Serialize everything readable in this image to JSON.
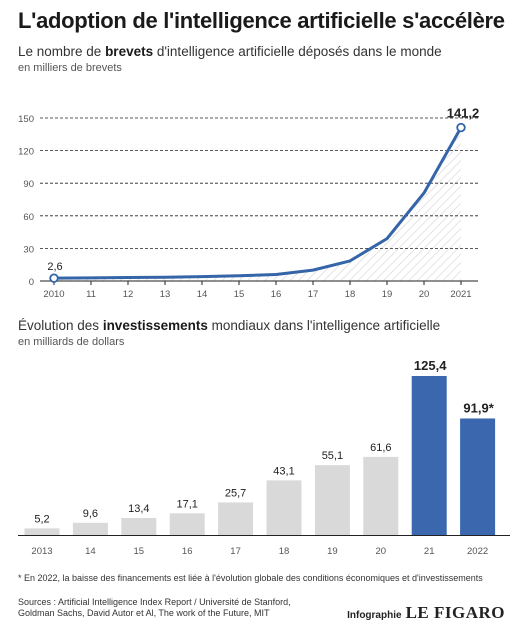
{
  "title": "L'adoption de l'intelligence artificielle s'accélère",
  "patents": {
    "subtitle_pre": "Le nombre de ",
    "subtitle_bold": "brevets",
    "subtitle_post": " d'intelligence artificielle déposés dans le monde",
    "unit": "en milliers de brevets"
  },
  "investments": {
    "subtitle_pre": "Évolution des ",
    "subtitle_bold": "investissements",
    "subtitle_post": " mondiaux dans l'intelligence artificielle",
    "unit": "en milliards de dollars"
  },
  "footnote": "* En 2022, la baisse des financements est liée à l'évolution globale des conditions économiques et d'investissements",
  "sources": "Sources : Artificial Intelligence Index Report / Université de Stanford, Goldman Sachs, David Autor et Al, The work of the Future, MIT",
  "credit": {
    "label": "Infographie",
    "logo": "LE FIGARO"
  },
  "colors": {
    "line": "#3565a8",
    "bar_highlight": "#3a67ae",
    "bar_gray": "#d9d9d9",
    "grid": "#222222"
  },
  "chart_data": [
    {
      "type": "line",
      "x": [
        "2010",
        "11",
        "12",
        "13",
        "14",
        "15",
        "16",
        "17",
        "18",
        "19",
        "20",
        "2021"
      ],
      "series": [
        {
          "values": [
            2.6,
            2.9,
            3.2,
            3.5,
            4.0,
            4.8,
            6.0,
            10.0,
            18.5,
            39.0,
            81.0,
            141.2
          ]
        }
      ],
      "point_labels": [
        {
          "index": 0,
          "text": "2,6"
        },
        {
          "index": 11,
          "text": "141,2"
        }
      ],
      "yticks": [
        "0",
        "30",
        "60",
        "90",
        "120",
        "150"
      ],
      "ylim": [
        0,
        150
      ],
      "grid": true
    },
    {
      "type": "bar",
      "categories": [
        "2013",
        "14",
        "15",
        "16",
        "17",
        "18",
        "19",
        "20",
        "21",
        "2022"
      ],
      "values": [
        5.2,
        9.6,
        13.4,
        17.1,
        25.7,
        43.1,
        55.1,
        61.6,
        125.4,
        91.9
      ],
      "value_labels": [
        "5,2",
        "9,6",
        "13,4",
        "17,1",
        "25,7",
        "43,1",
        "55,1",
        "61,6",
        "125,4",
        "91,9*"
      ],
      "highlighted": [
        8,
        9
      ],
      "ylim": [
        0,
        125.4
      ],
      "grid": false
    }
  ]
}
